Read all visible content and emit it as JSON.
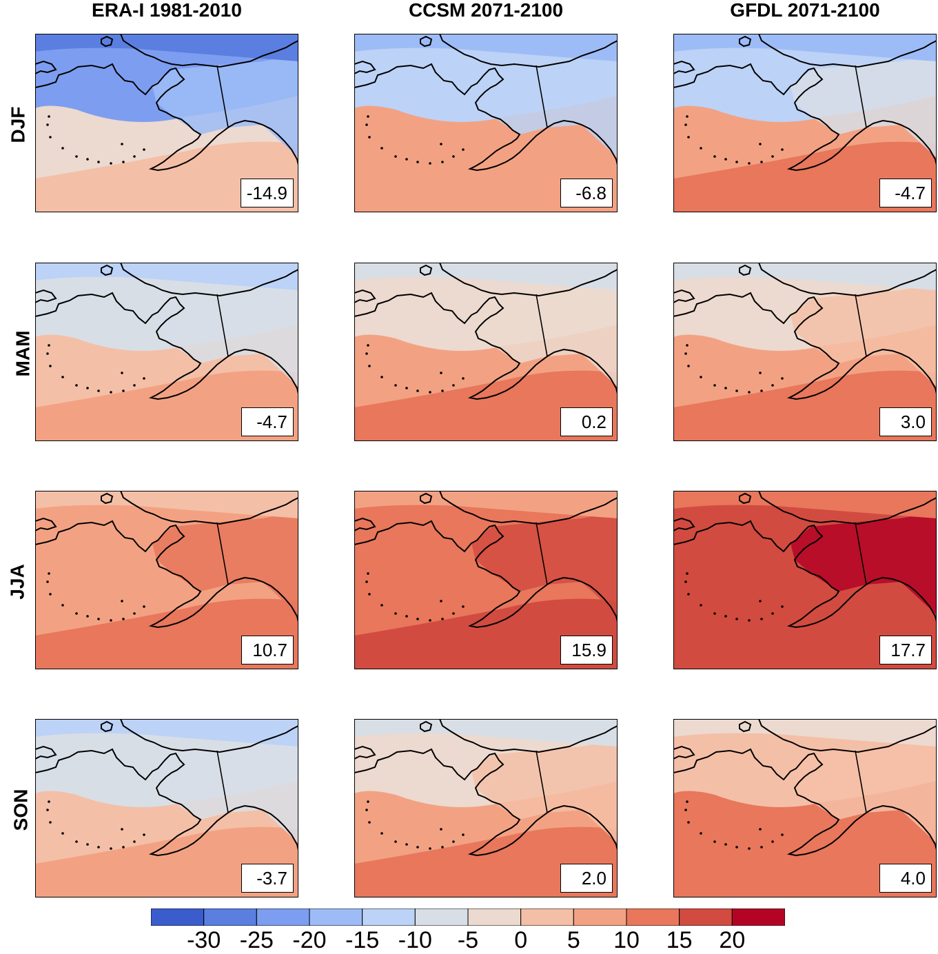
{
  "columns": [
    "ERA-I 1981-2010",
    "CCSM 2071-2100",
    "GFDL 2071-2100"
  ],
  "rows": [
    "DJF",
    "MAM",
    "JJA",
    "SON"
  ],
  "panels": [
    {
      "row": "DJF",
      "column": "ERA-I 1981-2010",
      "value": "-14.9",
      "regional_mean": -14.9
    },
    {
      "row": "DJF",
      "column": "CCSM 2071-2100",
      "value": "-6.8",
      "regional_mean": -6.8
    },
    {
      "row": "DJF",
      "column": "GFDL 2071-2100",
      "value": "-4.7",
      "regional_mean": -4.7
    },
    {
      "row": "MAM",
      "column": "ERA-I 1981-2010",
      "value": "-4.7",
      "regional_mean": -4.7
    },
    {
      "row": "MAM",
      "column": "CCSM 2071-2100",
      "value": "0.2",
      "regional_mean": 0.2
    },
    {
      "row": "MAM",
      "column": "GFDL 2071-2100",
      "value": "3.0",
      "regional_mean": 3.0
    },
    {
      "row": "JJA",
      "column": "ERA-I 1981-2010",
      "value": "10.7",
      "regional_mean": 10.7
    },
    {
      "row": "JJA",
      "column": "CCSM 2071-2100",
      "value": "15.9",
      "regional_mean": 15.9
    },
    {
      "row": "JJA",
      "column": "GFDL 2071-2100",
      "value": "17.7",
      "regional_mean": 17.7
    },
    {
      "row": "SON",
      "column": "ERA-I 1981-2010",
      "value": "-3.7",
      "regional_mean": -3.7
    },
    {
      "row": "SON",
      "column": "CCSM 2071-2100",
      "value": "2.0",
      "regional_mean": 2.0
    },
    {
      "row": "SON",
      "column": "GFDL 2071-2100",
      "value": "4.0",
      "regional_mean": 4.0
    }
  ],
  "colorbar": {
    "tick_labels": [
      "-30",
      "-25",
      "-20",
      "-15",
      "-10",
      "-5",
      "0",
      "5",
      "10",
      "15",
      "20"
    ],
    "colors": [
      "#3b5ccc",
      "#5b7fe0",
      "#7d9ef0",
      "#9dbcf7",
      "#bcd2f6",
      "#d8dee6",
      "#ecd9cf",
      "#f4bfa7",
      "#f2a283",
      "#e8775c",
      "#d24b40",
      "#b40426"
    ]
  }
}
